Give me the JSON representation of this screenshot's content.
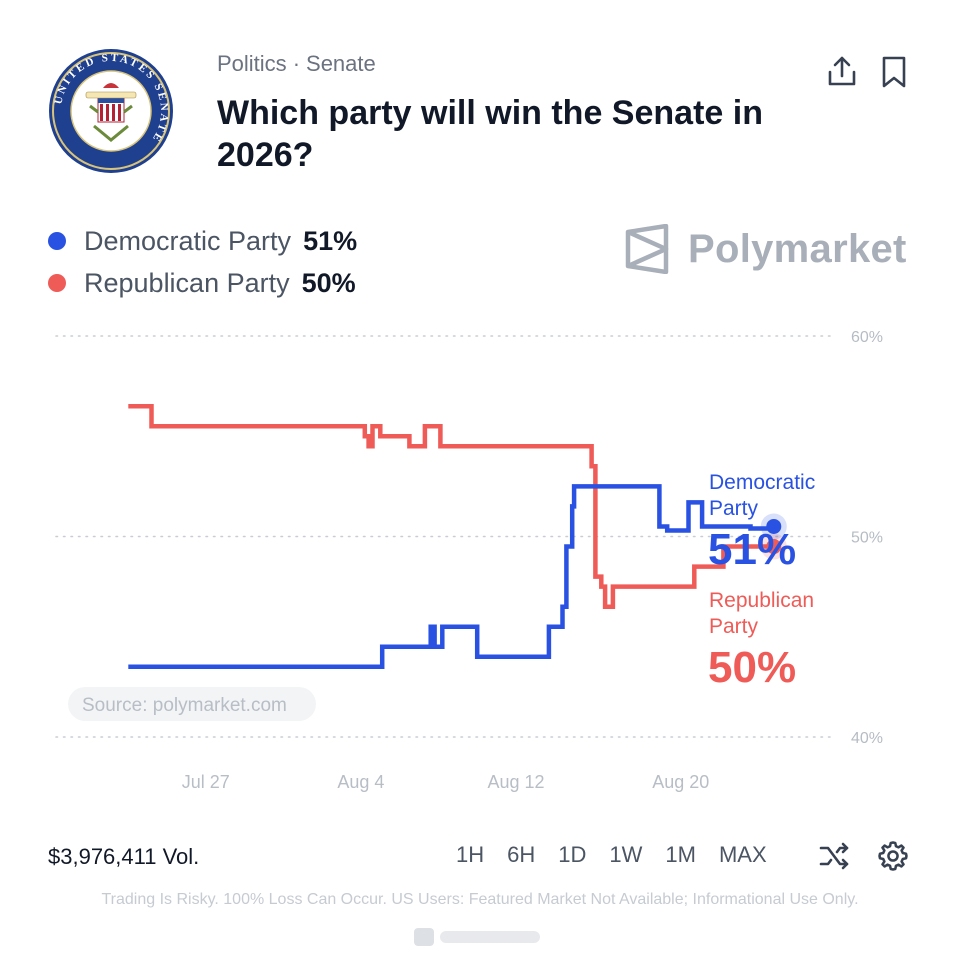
{
  "header": {
    "breadcrumb_category": "Politics",
    "breadcrumb_separator": "·",
    "breadcrumb_subcategory": "Senate",
    "title": "Which party will win the Senate in 2026?",
    "logo_text": "UNITED STATES SENATE",
    "logo_motto": "E PLURIBUS UNUM",
    "share_icon": "share-icon",
    "bookmark_icon": "bookmark-icon"
  },
  "legend": [
    {
      "name": "Democratic Party",
      "value": "51%",
      "color": "#2952e3"
    },
    {
      "name": "Republican Party",
      "value": "50%",
      "color": "#ef5b57"
    }
  ],
  "brand": {
    "name": "Polymarket",
    "color": "#a8afb9"
  },
  "chart_data": {
    "type": "line",
    "x_ticks": [
      "Jul 27",
      "Aug 4",
      "Aug 12",
      "Aug 20"
    ],
    "y_ticks": [
      "60%",
      "50%",
      "40%"
    ],
    "ylim": [
      40,
      60
    ],
    "grid": "horizontal dotted",
    "source": "Source: polymarket.com",
    "end_labels": [
      {
        "line1": "Democratic",
        "line2": "Party",
        "value": "51%"
      },
      {
        "line1": "Republican",
        "line2": "Party",
        "value": "50%"
      }
    ],
    "series": [
      {
        "name": "Democratic Party",
        "color": "#2952e3",
        "x": [
          20.0,
          31.9,
          33.1,
          35.2,
          35.6,
          35.8,
          36.2,
          38.0,
          41.7,
          42.4,
          42.6,
          42.9,
          43.0,
          43.3,
          47.4,
          47.8,
          48.9,
          49.6,
          50.7,
          52.1,
          53.3
        ],
        "y": [
          43.5,
          43.5,
          44.5,
          44.5,
          45.5,
          44.5,
          45.5,
          44.0,
          45.5,
          46.5,
          49.5,
          51.5,
          52.5,
          52.5,
          50.5,
          50.3,
          51.7,
          50.5,
          50.5,
          50.4,
          50.5
        ],
        "data_label": "51%"
      },
      {
        "name": "Republican Party",
        "color": "#ef5b57",
        "x": [
          20.0,
          21.2,
          32.2,
          32.4,
          32.6,
          33.0,
          34.5,
          35.3,
          36.1,
          43.8,
          43.9,
          44.1,
          44.4,
          44.6,
          45.0,
          48.7,
          49.2,
          50.7,
          53.3
        ],
        "y": [
          56.5,
          55.5,
          55.0,
          54.5,
          55.5,
          55.0,
          54.5,
          55.5,
          54.5,
          54.5,
          53.5,
          48.0,
          47.5,
          46.5,
          47.5,
          47.5,
          48.5,
          49.5,
          49.5
        ],
        "data_label": "50%"
      }
    ]
  },
  "footer": {
    "volume": "$3,976,411 Vol.",
    "ranges": [
      "1H",
      "6H",
      "1D",
      "1W",
      "1M",
      "MAX"
    ],
    "shuffle_icon": "shuffle-icon",
    "settings_icon": "gear-icon",
    "disclaimer": "Trading Is Risky. 100% Loss Can Occur. US Users: Featured Market Not Available; Informational Use Only."
  }
}
